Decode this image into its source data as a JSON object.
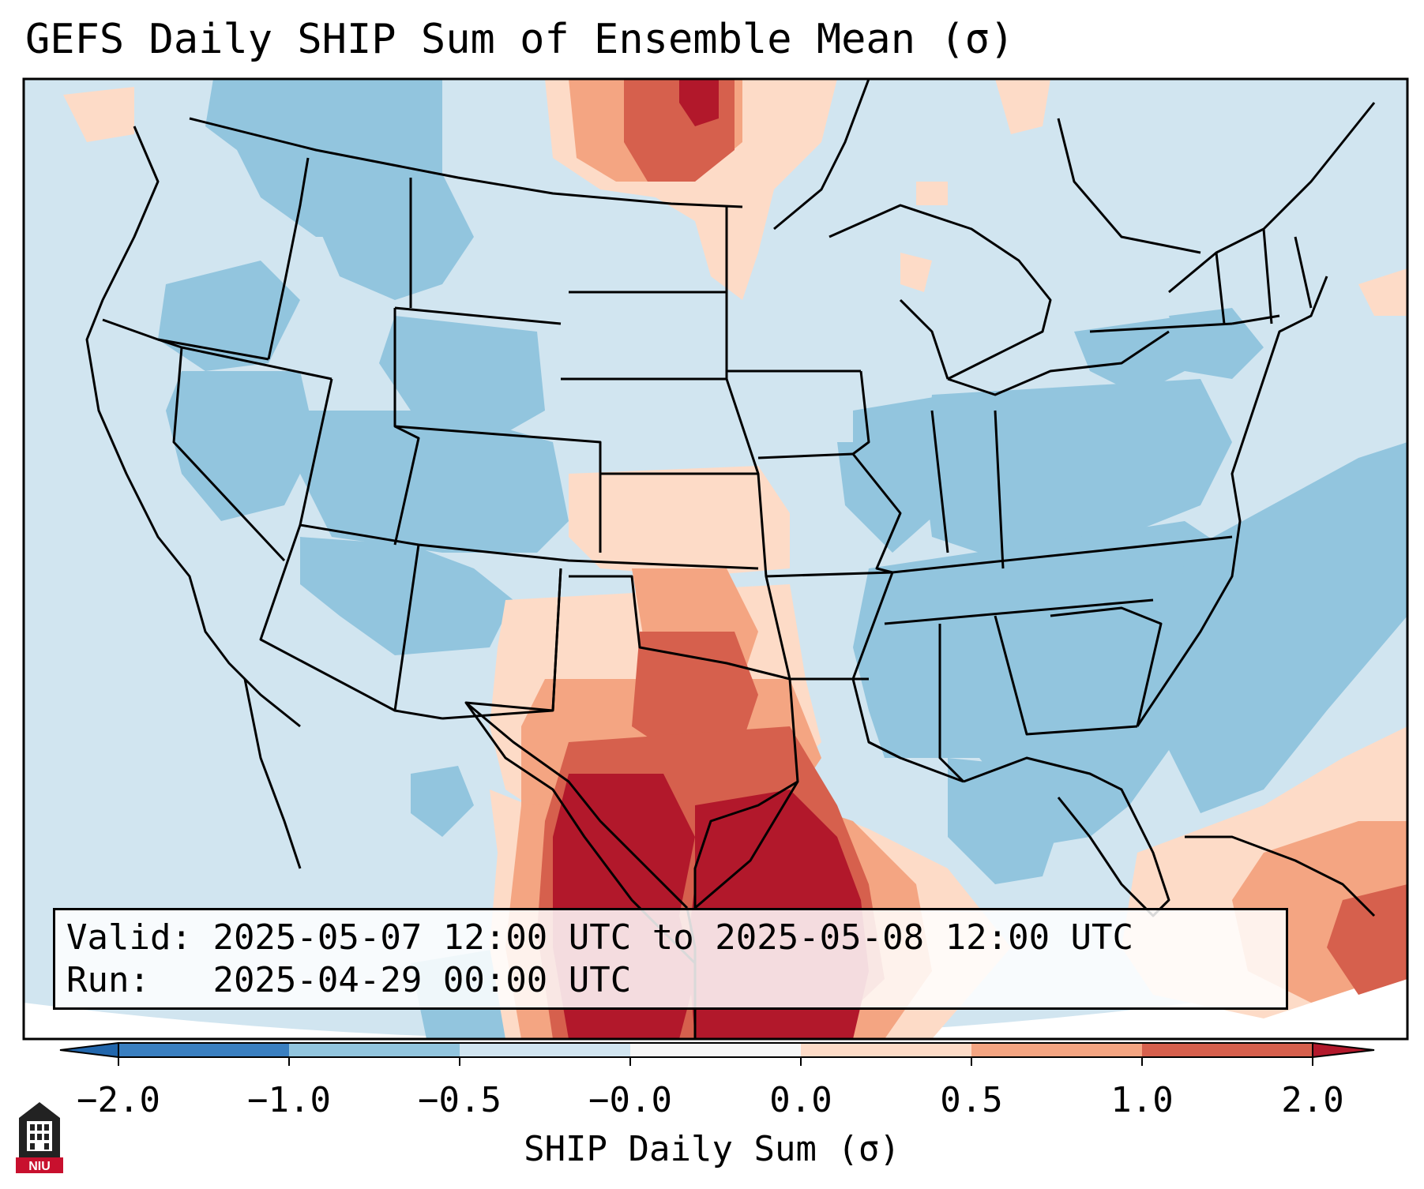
{
  "title": "GEFS Daily SHIP Sum of Ensemble Mean (σ)",
  "valid_label": "Valid:",
  "valid_value": "2025-05-07 12:00 UTC to 2025-05-08 12:00 UTC",
  "run_label": "Run:",
  "run_value": "2025-04-29 00:00 UTC",
  "colorbar": {
    "label": "SHIP Daily Sum (σ)",
    "ticks": [
      "−2.0",
      "−1.0",
      "−0.5",
      "−0.0",
      "0.0",
      "0.5",
      "1.0",
      "2.0"
    ],
    "colors": [
      "#3a7fc0",
      "#92c5de",
      "#d1e5f0",
      "#f7f7f7",
      "#fddbc7",
      "#f4a582",
      "#d6604d",
      "#b2182b"
    ],
    "under_color": "#2166ac",
    "over_color": "#b2182b"
  },
  "legend_symbols": {
    "logo": "NIU-logo"
  },
  "logo_text": "NIU"
}
